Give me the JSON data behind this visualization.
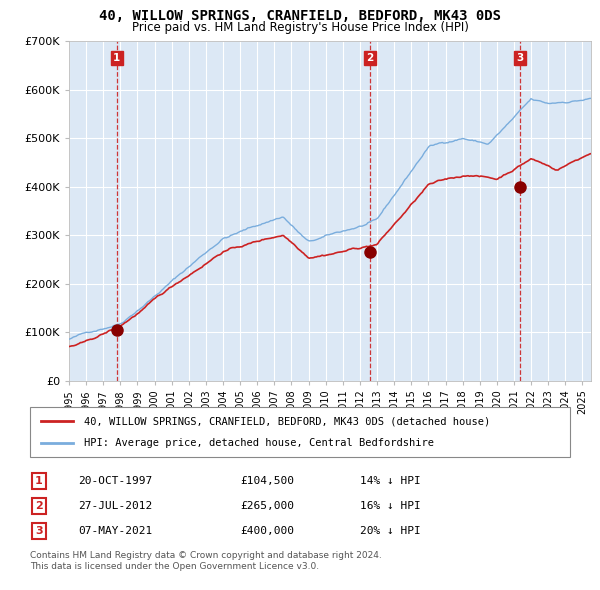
{
  "title": "40, WILLOW SPRINGS, CRANFIELD, BEDFORD, MK43 0DS",
  "subtitle": "Price paid vs. HM Land Registry's House Price Index (HPI)",
  "hpi_label": "HPI: Average price, detached house, Central Bedfordshire",
  "property_label": "40, WILLOW SPRINGS, CRANFIELD, BEDFORD, MK43 0DS (detached house)",
  "sales": [
    {
      "date": "20-OCT-1997",
      "price": 104500,
      "label": "1",
      "x_year": 1997.8
    },
    {
      "date": "27-JUL-2012",
      "price": 265000,
      "label": "2",
      "x_year": 2012.57
    },
    {
      "date": "07-MAY-2021",
      "price": 400000,
      "label": "3",
      "x_year": 2021.35
    }
  ],
  "sale_info": [
    {
      "num": "1",
      "date": "20-OCT-1997",
      "price": "£104,500",
      "pct": "14% ↓ HPI"
    },
    {
      "num": "2",
      "date": "27-JUL-2012",
      "price": "£265,000",
      "pct": "16% ↓ HPI"
    },
    {
      "num": "3",
      "date": "07-MAY-2021",
      "price": "£400,000",
      "pct": "20% ↓ HPI"
    }
  ],
  "ylim": [
    0,
    700000
  ],
  "yticks": [
    0,
    100000,
    200000,
    300000,
    400000,
    500000,
    600000,
    700000
  ],
  "xlim_start": 1995.0,
  "xlim_end": 2025.5,
  "hpi_color": "#7aaddd",
  "property_color": "#cc2222",
  "marker_color": "#880000",
  "bg_color": "#dce8f5",
  "grid_color": "#ffffff",
  "dashed_color": "#cc2222",
  "label_box_color": "#cc2222",
  "footnote1": "Contains HM Land Registry data © Crown copyright and database right 2024.",
  "footnote2": "This data is licensed under the Open Government Licence v3.0."
}
